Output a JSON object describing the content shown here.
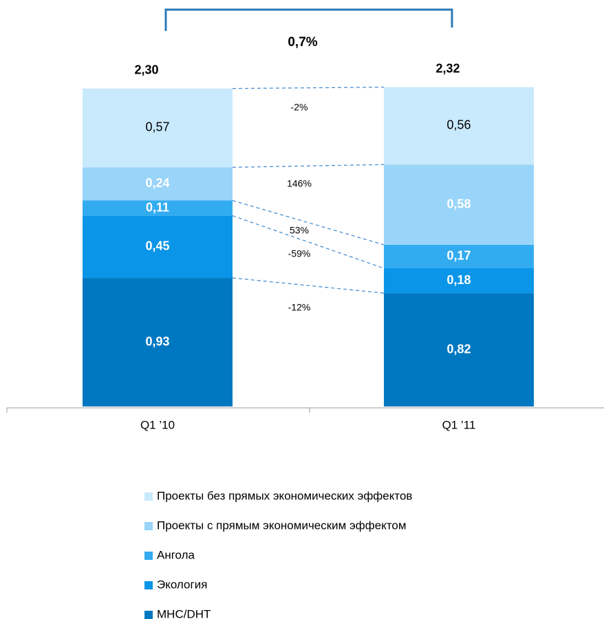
{
  "chart_data": {
    "type": "bar",
    "stacked": true,
    "categories": [
      "Q1 ’10",
      "Q1 ’11"
    ],
    "series": [
      {
        "name": "МНС/DHT",
        "color": "#0078c1",
        "values": [
          0.93,
          0.82
        ],
        "value_labels": [
          "0,93",
          "0,82"
        ]
      },
      {
        "name": "Экология",
        "color": "#0a95e8",
        "values": [
          0.45,
          0.18
        ],
        "value_labels": [
          "0,45",
          "0,18"
        ]
      },
      {
        "name": "Ангола",
        "color": "#33abf0",
        "values": [
          0.11,
          0.17
        ],
        "value_labels": [
          "0,11",
          "0,17"
        ]
      },
      {
        "name": "Проекты с прямым экономическим эффектом",
        "color": "#99d4f9",
        "values": [
          0.24,
          0.58
        ],
        "value_labels": [
          "0,24",
          "0,58"
        ]
      },
      {
        "name": "Проекты без прямых экономических эффектов",
        "color": "#c9e9fc",
        "values": [
          0.57,
          0.56
        ],
        "value_labels": [
          "0,57",
          "0,56"
        ]
      }
    ],
    "totals": [
      2.3,
      2.32
    ],
    "total_labels": [
      "2,30",
      "2,32"
    ],
    "changes": [
      -12,
      -59,
      53,
      146,
      -2
    ],
    "change_labels": [
      "-12%",
      "-59%",
      "53%",
      "146%",
      "-2%"
    ],
    "total_change": 0.7,
    "total_change_label": "0,7%"
  }
}
